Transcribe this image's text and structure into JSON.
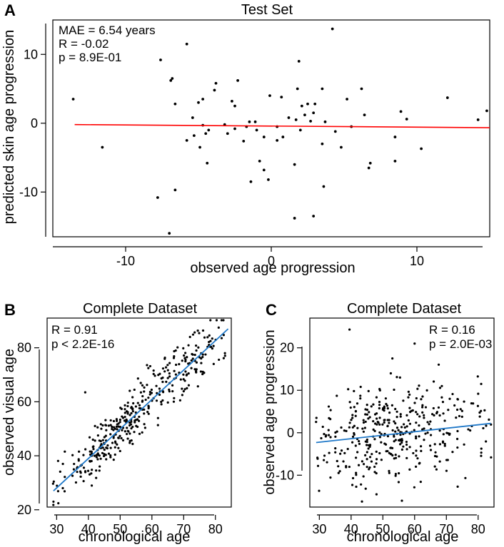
{
  "chart_data": [
    {
      "panel": "A",
      "type": "scatter",
      "title": "Test Set",
      "xlabel": "observed age progression",
      "ylabel": "predicted skin age progression",
      "xlim": [
        -15,
        15
      ],
      "ylim": [
        -16.5,
        15
      ],
      "xticks": [
        -10,
        0,
        10
      ],
      "yticks": [
        -10,
        0,
        10
      ],
      "annotations": [
        "MAE = 6.54 years",
        "R = -0.02",
        "p = 8.9E-01"
      ],
      "fit_color": "#ff0000",
      "fit_line": {
        "x": [
          -13.5,
          15
        ],
        "y": [
          -0.2,
          -0.65
        ]
      },
      "points": [
        [
          -13.6,
          3.5
        ],
        [
          -11.6,
          -3.5
        ],
        [
          -7.8,
          -10.8
        ],
        [
          -7.6,
          9.2
        ],
        [
          -7,
          -16
        ],
        [
          -6.9,
          6.2
        ],
        [
          -6.8,
          6.5
        ],
        [
          -6.6,
          -9.7
        ],
        [
          -6.6,
          2.8
        ],
        [
          -5.8,
          11.5
        ],
        [
          -5.8,
          -2.5
        ],
        [
          -5.4,
          0.8
        ],
        [
          -5.3,
          -1.8
        ],
        [
          -5,
          3
        ],
        [
          -4.9,
          -3.5
        ],
        [
          -4.7,
          -0.3
        ],
        [
          -4.7,
          3.5
        ],
        [
          -4.5,
          -1.5
        ],
        [
          -4.4,
          -5.8
        ],
        [
          -4.3,
          -1
        ],
        [
          -3.9,
          4.8
        ],
        [
          -3.8,
          5.8
        ],
        [
          -3.2,
          -0.2
        ],
        [
          -3,
          -1.5
        ],
        [
          -2.7,
          3.2
        ],
        [
          -2.5,
          -0.8
        ],
        [
          -2.5,
          2.5
        ],
        [
          -2.3,
          6.2
        ],
        [
          -1.9,
          -2.6
        ],
        [
          -1.7,
          -0.5
        ],
        [
          -1.5,
          0.2
        ],
        [
          -1.4,
          -8.5
        ],
        [
          -1.1,
          0.2
        ],
        [
          -1,
          -1
        ],
        [
          -0.8,
          -5.5
        ],
        [
          -0.5,
          -2
        ],
        [
          -0.5,
          -6.8
        ],
        [
          -0.2,
          -8.2
        ],
        [
          -0.1,
          4
        ],
        [
          0.4,
          -0.5
        ],
        [
          0.4,
          -2.5
        ],
        [
          0.7,
          3.8
        ],
        [
          0.8,
          -2
        ],
        [
          1.2,
          0.8
        ],
        [
          1.6,
          -13.8
        ],
        [
          1.6,
          -6
        ],
        [
          1.7,
          0.5
        ],
        [
          1.8,
          5
        ],
        [
          1.9,
          9
        ],
        [
          2,
          -1
        ],
        [
          2.1,
          2.5
        ],
        [
          2.3,
          1.2
        ],
        [
          2.5,
          2.8
        ],
        [
          2.7,
          0.3
        ],
        [
          2.9,
          1.5
        ],
        [
          2.9,
          -13.5
        ],
        [
          3,
          2.8
        ],
        [
          3.5,
          -3
        ],
        [
          3.5,
          5
        ],
        [
          3.6,
          -9.2
        ],
        [
          3.7,
          0.2
        ],
        [
          4.2,
          13.7
        ],
        [
          4.4,
          -1.2
        ],
        [
          4.8,
          -3.5
        ],
        [
          5.2,
          3.5
        ],
        [
          5.5,
          -0.5
        ],
        [
          6.2,
          5
        ],
        [
          6.4,
          1.2
        ],
        [
          6.7,
          -6.5
        ],
        [
          6.8,
          -5.8
        ],
        [
          8.5,
          -2
        ],
        [
          8.5,
          -5.5
        ],
        [
          8.9,
          1.7
        ],
        [
          9.3,
          0.6
        ],
        [
          10.3,
          -3.7
        ],
        [
          12.1,
          3.7
        ],
        [
          14.2,
          0.5
        ],
        [
          14.8,
          1.8
        ]
      ]
    },
    {
      "panel": "B",
      "type": "scatter",
      "title": "Complete Dataset",
      "xlabel": "chronological age",
      "ylabel": "observed visual age",
      "xlim": [
        27,
        85
      ],
      "ylim": [
        21,
        91
      ],
      "xticks": [
        30,
        40,
        50,
        60,
        70,
        80
      ],
      "yticks": [
        20,
        40,
        60,
        80
      ],
      "annotations": [
        "R = 0.91",
        "p < 2.2E-16"
      ],
      "fit_color": "#1f78c8",
      "fit_line": {
        "x": [
          29,
          84
        ],
        "y": [
          27,
          87
        ]
      },
      "noise": 5.2,
      "n_points": 380,
      "extra_points": [
        [
          39,
          63.5
        ],
        [
          29,
          23
        ],
        [
          72,
          84
        ],
        [
          83,
          78
        ]
      ]
    },
    {
      "panel": "C",
      "type": "scatter",
      "title": "Complete Dataset",
      "xlabel": "chronological age",
      "ylabel": "observed age progression",
      "xlim": [
        27,
        85
      ],
      "ylim": [
        -17.5,
        27
      ],
      "xticks": [
        30,
        40,
        50,
        60,
        70,
        80
      ],
      "yticks": [
        -10,
        0,
        10,
        20
      ],
      "annotations": [
        "R = 0.16",
        "p = 2.0E-03"
      ],
      "fit_color": "#1f78c8",
      "fit_line": {
        "x": [
          29,
          84
        ],
        "y": [
          -2.3,
          2.2
        ]
      },
      "noise": 5.2,
      "n_points": 380,
      "extra_points": [
        [
          39.5,
          24.3
        ],
        [
          60,
          21
        ],
        [
          53,
          17.5
        ],
        [
          56,
          -16
        ],
        [
          48,
          -14.5
        ]
      ]
    }
  ]
}
